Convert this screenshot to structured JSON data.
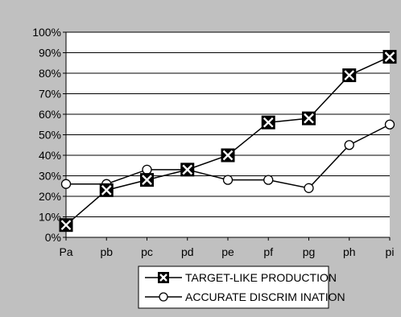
{
  "chart_data": {
    "type": "line",
    "categories": [
      "Pa",
      "pb",
      "pc",
      "pd",
      "pe",
      "pf",
      "pg",
      "ph",
      "pi"
    ],
    "series": [
      {
        "name": "TARGET-LIKE PRODUCTION",
        "marker": "boxed-x",
        "values": [
          6,
          23,
          28,
          33,
          40,
          56,
          58,
          79,
          88
        ]
      },
      {
        "name": "ACCURATE DISCRIM INATION",
        "marker": "open-circle",
        "values": [
          26,
          26,
          33,
          33,
          28,
          28,
          24,
          45,
          55
        ]
      }
    ],
    "y_ticks": [
      "0%",
      "10%",
      "20%",
      "30%",
      "40%",
      "50%",
      "60%",
      "70%",
      "80%",
      "90%",
      "100%"
    ],
    "ylim": [
      0,
      100
    ],
    "grid": "horizontal",
    "legend_position": "bottom",
    "colors": {
      "outer_background": "#c0c0c0",
      "plot_background": "#ffffff",
      "line": "#000000",
      "marker_fill": "#000000"
    }
  }
}
